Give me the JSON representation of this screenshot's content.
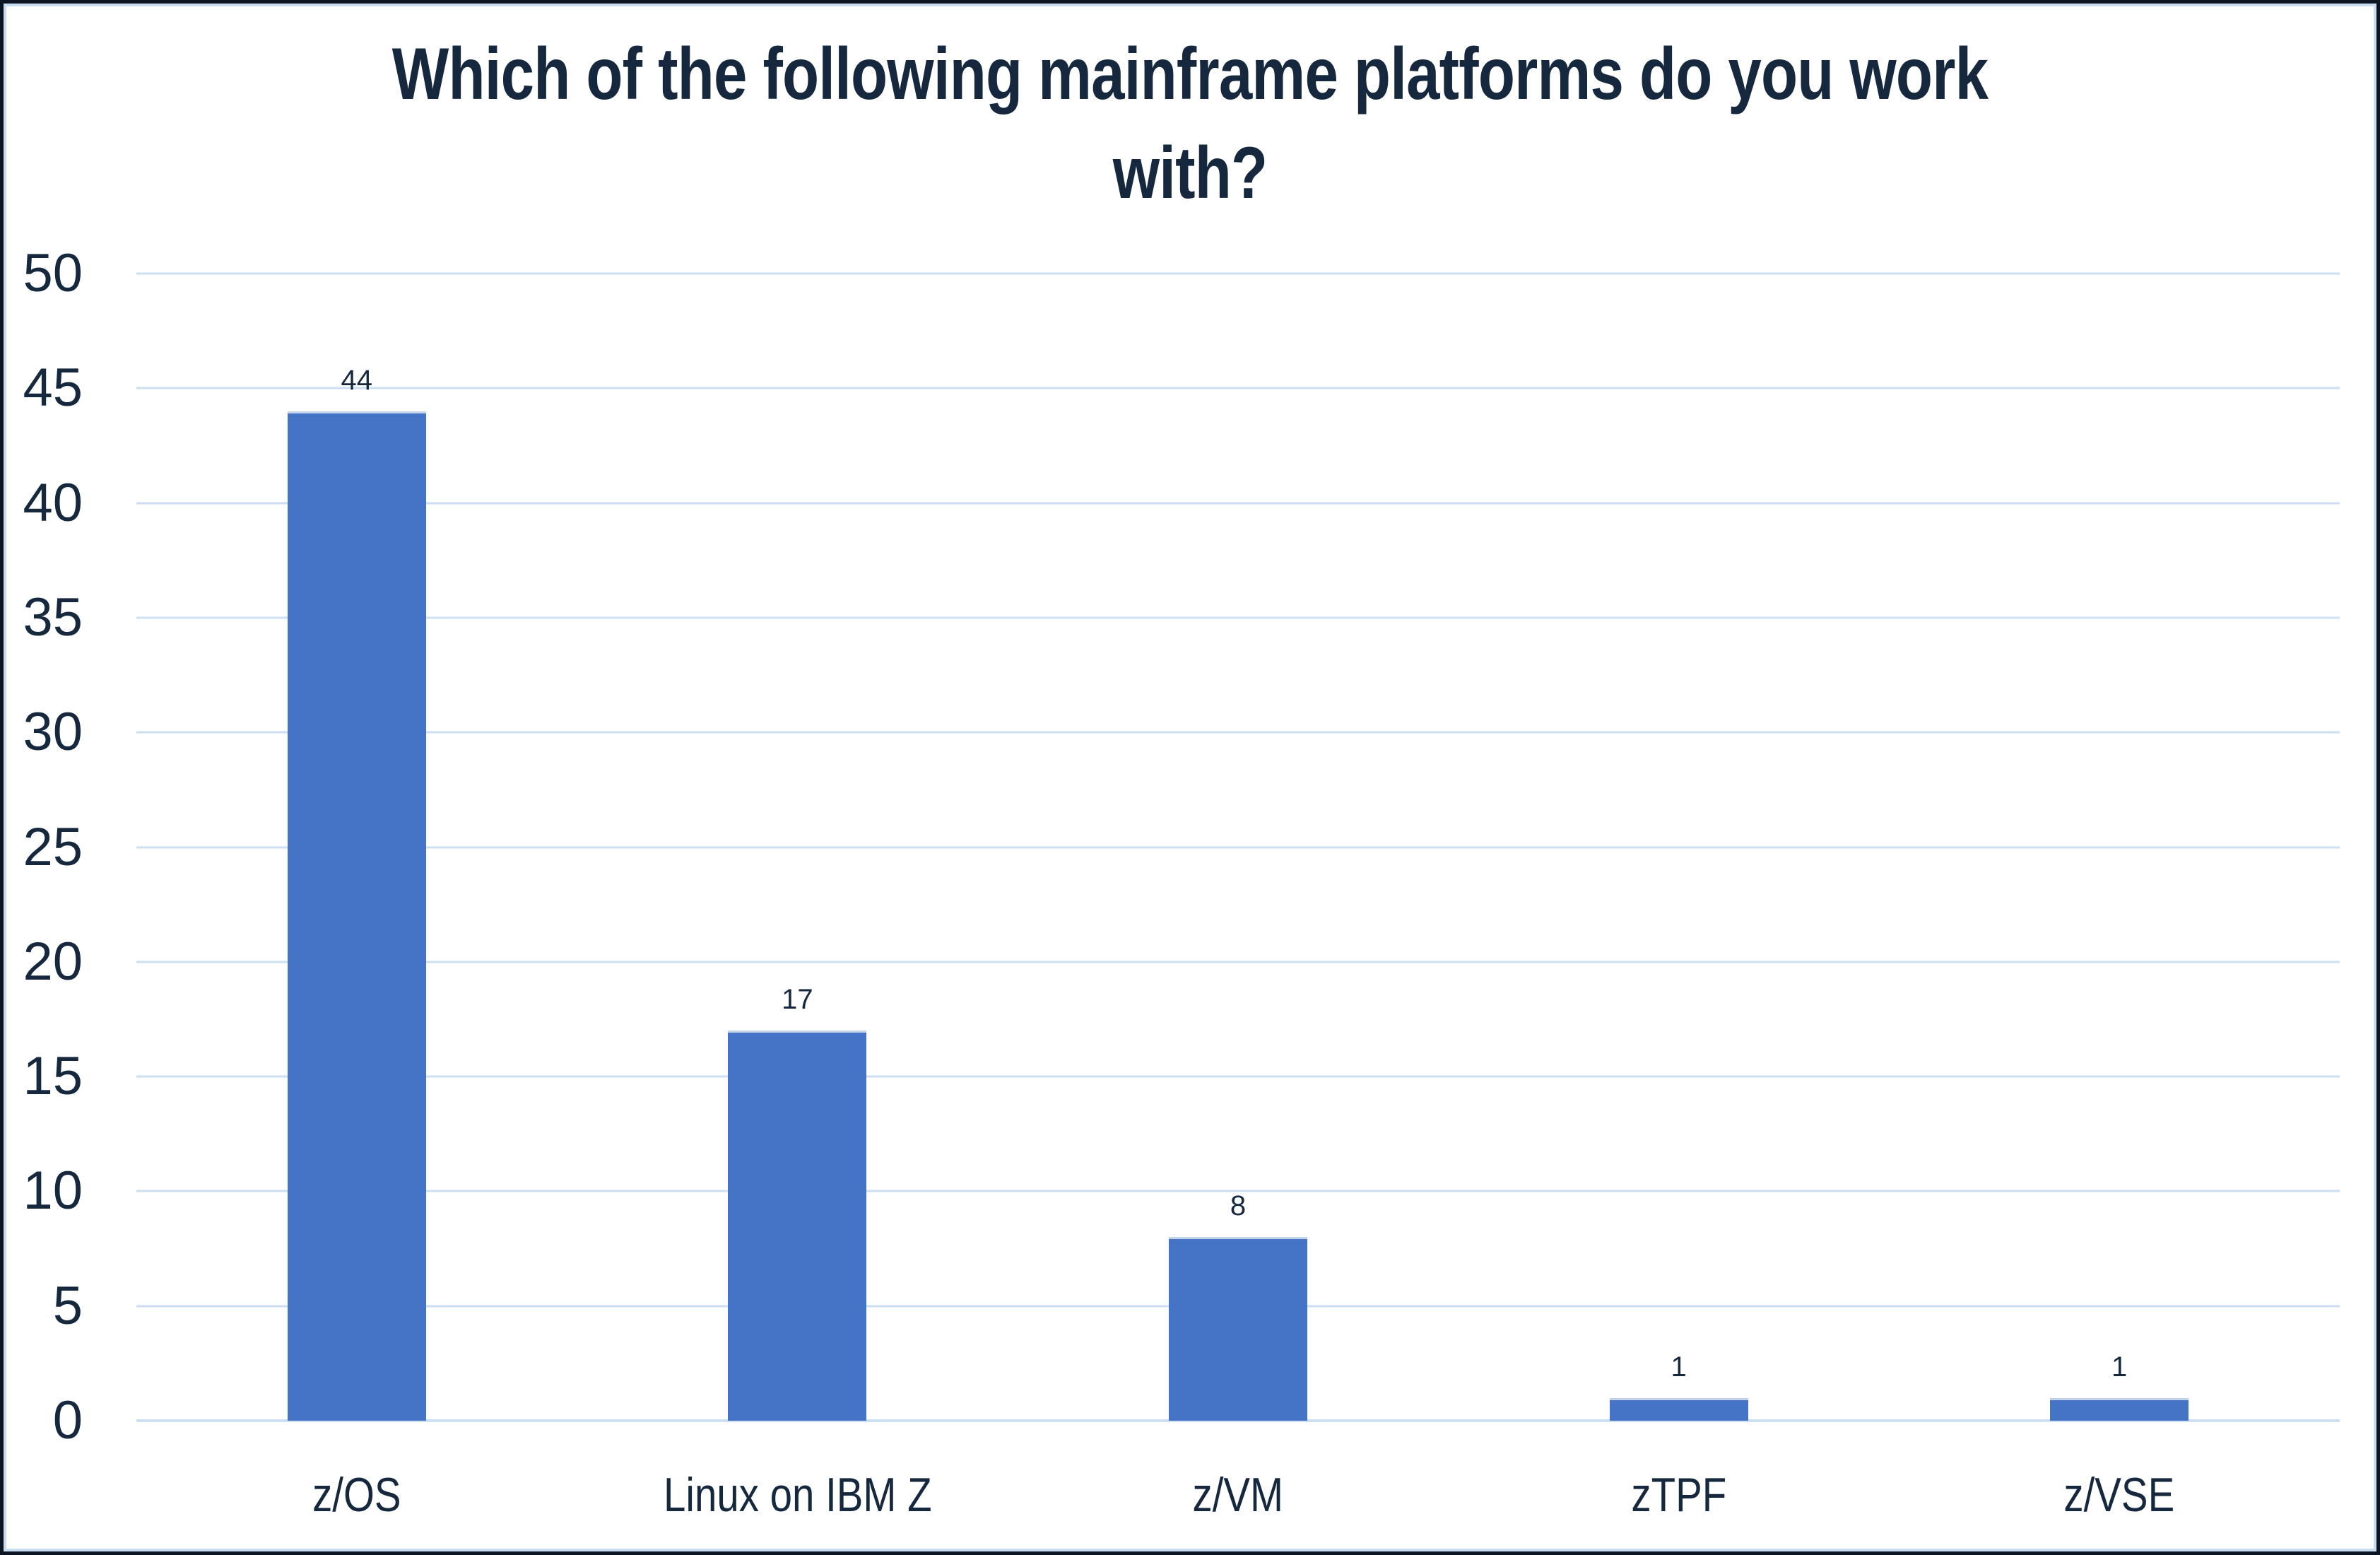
{
  "chart_data": {
    "type": "bar",
    "title": "Which of the following mainframe platforms do you work\nwith?",
    "categories": [
      "z/OS",
      "Linux on IBM Z",
      "z/VM",
      "zTPF",
      "z/VSE"
    ],
    "values": [
      44,
      17,
      8,
      1,
      1
    ],
    "value_label_visible": true,
    "xlabel": "",
    "ylabel": "",
    "ylim": [
      0,
      50
    ],
    "yticks": [
      0,
      5,
      10,
      15,
      20,
      25,
      30,
      35,
      40,
      45,
      50
    ],
    "grid": true,
    "legend": "none",
    "colors": {
      "bar_fill": "#4573C6",
      "bar_top_edge": "#C2D3EA",
      "gridline": "#CDDFF2",
      "text": "#15283E",
      "frame_outer": "#0C1624",
      "frame_inner": "#C8DCF2",
      "background": "#FFFFFF"
    }
  }
}
